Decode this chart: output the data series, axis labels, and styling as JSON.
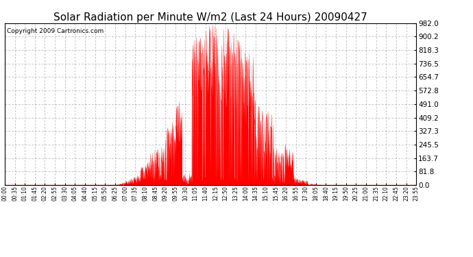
{
  "title": "Solar Radiation per Minute W/m2 (Last 24 Hours) 20090427",
  "copyright": "Copyright 2009 Cartronics.com",
  "yticks": [
    0.0,
    81.8,
    163.7,
    245.5,
    327.3,
    409.2,
    491.0,
    572.8,
    654.7,
    736.5,
    818.3,
    900.2,
    982.0
  ],
  "ylim": [
    0.0,
    982.0
  ],
  "bar_color": "#FF0000",
  "dashed_line_color": "#FF0000",
  "grid_color": "#AAAAAA",
  "background_color": "#FFFFFF",
  "title_fontsize": 11,
  "copyright_fontsize": 6.5,
  "xtick_fontsize": 5.5,
  "ytick_fontsize": 7.5,
  "xtick_labels": [
    "00:00",
    "00:35",
    "01:10",
    "01:45",
    "02:20",
    "02:55",
    "03:30",
    "04:05",
    "04:40",
    "05:15",
    "05:50",
    "06:25",
    "07:00",
    "07:35",
    "08:10",
    "08:45",
    "09:20",
    "09:55",
    "10:30",
    "11:05",
    "11:40",
    "12:15",
    "12:50",
    "13:25",
    "14:00",
    "14:35",
    "15:10",
    "15:45",
    "16:20",
    "16:55",
    "17:30",
    "18:05",
    "18:40",
    "19:15",
    "19:50",
    "20:25",
    "21:00",
    "21:35",
    "22:10",
    "22:45",
    "23:20",
    "23:55"
  ],
  "num_minutes": 1440,
  "figwidth": 6.9,
  "figheight": 3.75,
  "dpi": 100
}
